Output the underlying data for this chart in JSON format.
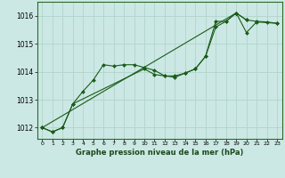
{
  "title": "Graphe pression niveau de la mer (hPa)",
  "background_color": "#cce8e4",
  "grid_color": "#b0d4cc",
  "line_color": "#1a5c1a",
  "ylim": [
    1011.6,
    1016.5
  ],
  "yticks": [
    1012,
    1013,
    1014,
    1015,
    1016
  ],
  "xlim": [
    -0.5,
    23.5
  ],
  "xticks": [
    0,
    1,
    2,
    3,
    4,
    5,
    6,
    7,
    8,
    9,
    10,
    11,
    12,
    13,
    14,
    15,
    16,
    17,
    18,
    19,
    20,
    21,
    22,
    23
  ],
  "series1_x": [
    0,
    1,
    2,
    3,
    4,
    5,
    6,
    7,
    8,
    9,
    10,
    11,
    12,
    13,
    14,
    15,
    16,
    17,
    18,
    19,
    20,
    21,
    22,
    23
  ],
  "series1_y": [
    1012.0,
    1011.85,
    1012.0,
    1012.85,
    1013.3,
    1013.7,
    1014.25,
    1014.2,
    1014.25,
    1014.25,
    1014.15,
    1014.05,
    1013.85,
    1013.8,
    1013.95,
    1014.1,
    1014.55,
    1015.8,
    1015.8,
    1016.1,
    1015.85,
    1015.8,
    1015.78,
    1015.73
  ],
  "series2_x": [
    0,
    1,
    2,
    3,
    10,
    11,
    12,
    13,
    14,
    15,
    16,
    17,
    18,
    19,
    20
  ],
  "series2_y": [
    1012.0,
    1011.85,
    1012.0,
    1012.85,
    1014.1,
    1013.9,
    1013.85,
    1013.85,
    1013.95,
    1014.1,
    1014.55,
    1015.6,
    1015.8,
    1016.1,
    1015.85
  ],
  "series3_x": [
    0,
    19,
    20,
    21,
    23
  ],
  "series3_y": [
    1012.0,
    1016.1,
    1015.4,
    1015.78,
    1015.73
  ]
}
